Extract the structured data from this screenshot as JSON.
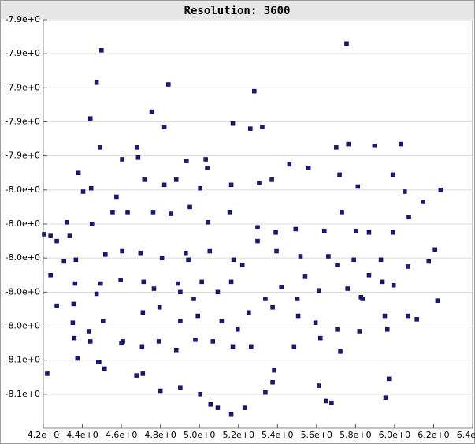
{
  "chart_data": {
    "type": "scatter",
    "title": "Resolution: 3600",
    "color": "#1a1a7a",
    "grid": true,
    "xlim": [
      4.2,
      6.4
    ],
    "xticks": [
      {
        "value": 4.2,
        "label": "4.2e+0"
      },
      {
        "value": 4.4,
        "label": "4.4e+0"
      },
      {
        "value": 4.6,
        "label": "4.6e+0"
      },
      {
        "value": 4.8,
        "label": "4.8e+0"
      },
      {
        "value": 5.0,
        "label": "5.0e+0"
      },
      {
        "value": 5.2,
        "label": "5.2e+0"
      },
      {
        "value": 5.4,
        "label": "5.4e+0"
      },
      {
        "value": 5.6,
        "label": "5.6e+0"
      },
      {
        "value": 5.8,
        "label": "5.8e+0"
      },
      {
        "value": 6.0,
        "label": "6.0e+0"
      },
      {
        "value": 6.2,
        "label": "6.2e+0"
      },
      {
        "value": 6.4,
        "label": "6.4e+0"
      }
    ],
    "ylim": [
      -8.1,
      -7.86
    ],
    "yticks": [
      {
        "value": -7.86,
        "label": "-7.9e+0"
      },
      {
        "value": -7.88,
        "label": "-7.9e+0"
      },
      {
        "value": -7.9,
        "label": "-7.9e+0"
      },
      {
        "value": -7.92,
        "label": "-7.9e+0"
      },
      {
        "value": -7.94,
        "label": "-7.9e+0"
      },
      {
        "value": -7.96,
        "label": "-8.0e+0"
      },
      {
        "value": -7.98,
        "label": "-8.0e+0"
      },
      {
        "value": -8.0,
        "label": "-8.0e+0"
      },
      {
        "value": -8.02,
        "label": "-8.0e+0"
      },
      {
        "value": -8.04,
        "label": "-8.0e+0"
      },
      {
        "value": -8.06,
        "label": "-8.1e+0"
      },
      {
        "value": -8.08,
        "label": "-8.1e+0"
      }
    ],
    "x": [
      5.754,
      4.498,
      4.473,
      4.841,
      4.441,
      5.281,
      4.755,
      5.171,
      5.261,
      5.322,
      4.82,
      4.49,
      4.681,
      5.701,
      5.763,
      5.897,
      6.032,
      4.38,
      4.404,
      4.445,
      4.575,
      4.604,
      4.686,
      4.934,
      5.032,
      5.04,
      4.718,
      4.82,
      4.881,
      5.004,
      5.163,
      5.306,
      5.371,
      5.461,
      5.559,
      5.718,
      5.812,
      5.991,
      6.052,
      4.322,
      4.237,
      4.204,
      4.269,
      4.335,
      4.449,
      4.555,
      4.632,
      4.763,
      4.853,
      4.951,
      5.045,
      5.155,
      5.298,
      5.391,
      5.493,
      5.64,
      5.73,
      5.803,
      5.869,
      5.991,
      6.073,
      6.146,
      4.237,
      4.367,
      4.363,
      4.518,
      4.604,
      4.698,
      4.808,
      4.93,
      5.053,
      5.175,
      5.298,
      5.395,
      5.518,
      5.661,
      5.706,
      5.791,
      5.93,
      6.069,
      6.175,
      6.207,
      4.269,
      4.355,
      4.473,
      4.494,
      4.596,
      4.714,
      4.767,
      4.902,
      5.012,
      5.094,
      5.163,
      5.338,
      5.42,
      5.502,
      5.612,
      5.759,
      5.828,
      5.938,
      5.995,
      6.22,
      4.351,
      4.359,
      4.433,
      4.506,
      4.608,
      4.71,
      4.796,
      4.902,
      4.992,
      5.114,
      5.196,
      5.253,
      5.375,
      5.506,
      5.595,
      5.706,
      5.836,
      5.95,
      6.069,
      6.114,
      4.375,
      4.441,
      4.486,
      4.6,
      4.706,
      4.792,
      4.881,
      4.979,
      5.069,
      5.171,
      5.265,
      5.383,
      5.485,
      5.62,
      5.722,
      5.82,
      5.963,
      4.22,
      4.482,
      4.514,
      4.677,
      4.71,
      4.8,
      4.902,
      5.004,
      5.057,
      5.094,
      5.232,
      5.338,
      5.375,
      5.612,
      5.648,
      5.677,
      5.971,
      5.954,
      5.163,
      4.306,
      4.943,
      5.22,
      4.89,
      4.971,
      5.542,
      5.869,
      6.236
    ],
    "values": [
      -7.874,
      -7.878,
      -7.897,
      -7.898,
      -7.918,
      -7.902,
      -7.914,
      -7.921,
      -7.924,
      -7.923,
      -7.923,
      -7.935,
      -7.935,
      -7.935,
      -7.933,
      -7.934,
      -7.933,
      -7.95,
      -7.961,
      -7.959,
      -7.964,
      -7.942,
      -7.941,
      -7.943,
      -7.942,
      -7.947,
      -7.954,
      -7.957,
      -7.954,
      -7.959,
      -7.957,
      -7.956,
      -7.954,
      -7.945,
      -7.947,
      -7.951,
      -7.958,
      -7.951,
      -7.961,
      -7.979,
      -7.987,
      -7.986,
      -7.99,
      -7.987,
      -7.98,
      -7.973,
      -7.973,
      -7.973,
      -7.974,
      -7.97,
      -7.979,
      -7.973,
      -7.982,
      -7.985,
      -7.983,
      -7.984,
      -7.973,
      -7.984,
      -7.985,
      -7.985,
      -7.976,
      -7.967,
      -8.01,
      -8.001,
      -8.015,
      -7.998,
      -7.996,
      -7.997,
      -8.0,
      -7.997,
      -7.996,
      -8.001,
      -7.99,
      -7.996,
      -7.999,
      -7.999,
      -8.004,
      -8.001,
      -8.001,
      -8.005,
      -8.002,
      -7.995,
      -8.028,
      -8.027,
      -8.021,
      -8.015,
      -8.013,
      -8.014,
      -8.018,
      -8.02,
      -8.014,
      -8.02,
      -8.014,
      -8.024,
      -8.017,
      -8.024,
      -8.019,
      -8.018,
      -8.023,
      -8.014,
      -8.016,
      -8.025,
      -8.038,
      -8.047,
      -8.043,
      -8.037,
      -8.049,
      -8.032,
      -8.029,
      -8.037,
      -8.034,
      -8.037,
      -8.042,
      -8.032,
      -8.029,
      -8.034,
      -8.038,
      -8.042,
      -8.024,
      -8.034,
      -8.034,
      -8.036,
      -8.059,
      -8.049,
      -8.061,
      -8.05,
      -8.052,
      -8.049,
      -8.054,
      -8.048,
      -8.049,
      -8.052,
      -8.052,
      -8.066,
      -8.052,
      -8.047,
      -8.055,
      -8.043,
      -8.042,
      -8.068,
      -8.061,
      -8.065,
      -8.069,
      -8.068,
      -8.078,
      -8.076,
      -8.08,
      -8.086,
      -8.088,
      -8.088,
      -8.079,
      -8.073,
      -8.075,
      -8.084,
      -8.085,
      -8.071,
      -8.082,
      -8.092,
      -8.002,
      -8.001,
      -8.004,
      -8.015,
      -8.024,
      -8.011,
      -8.01,
      -7.96
    ]
  }
}
